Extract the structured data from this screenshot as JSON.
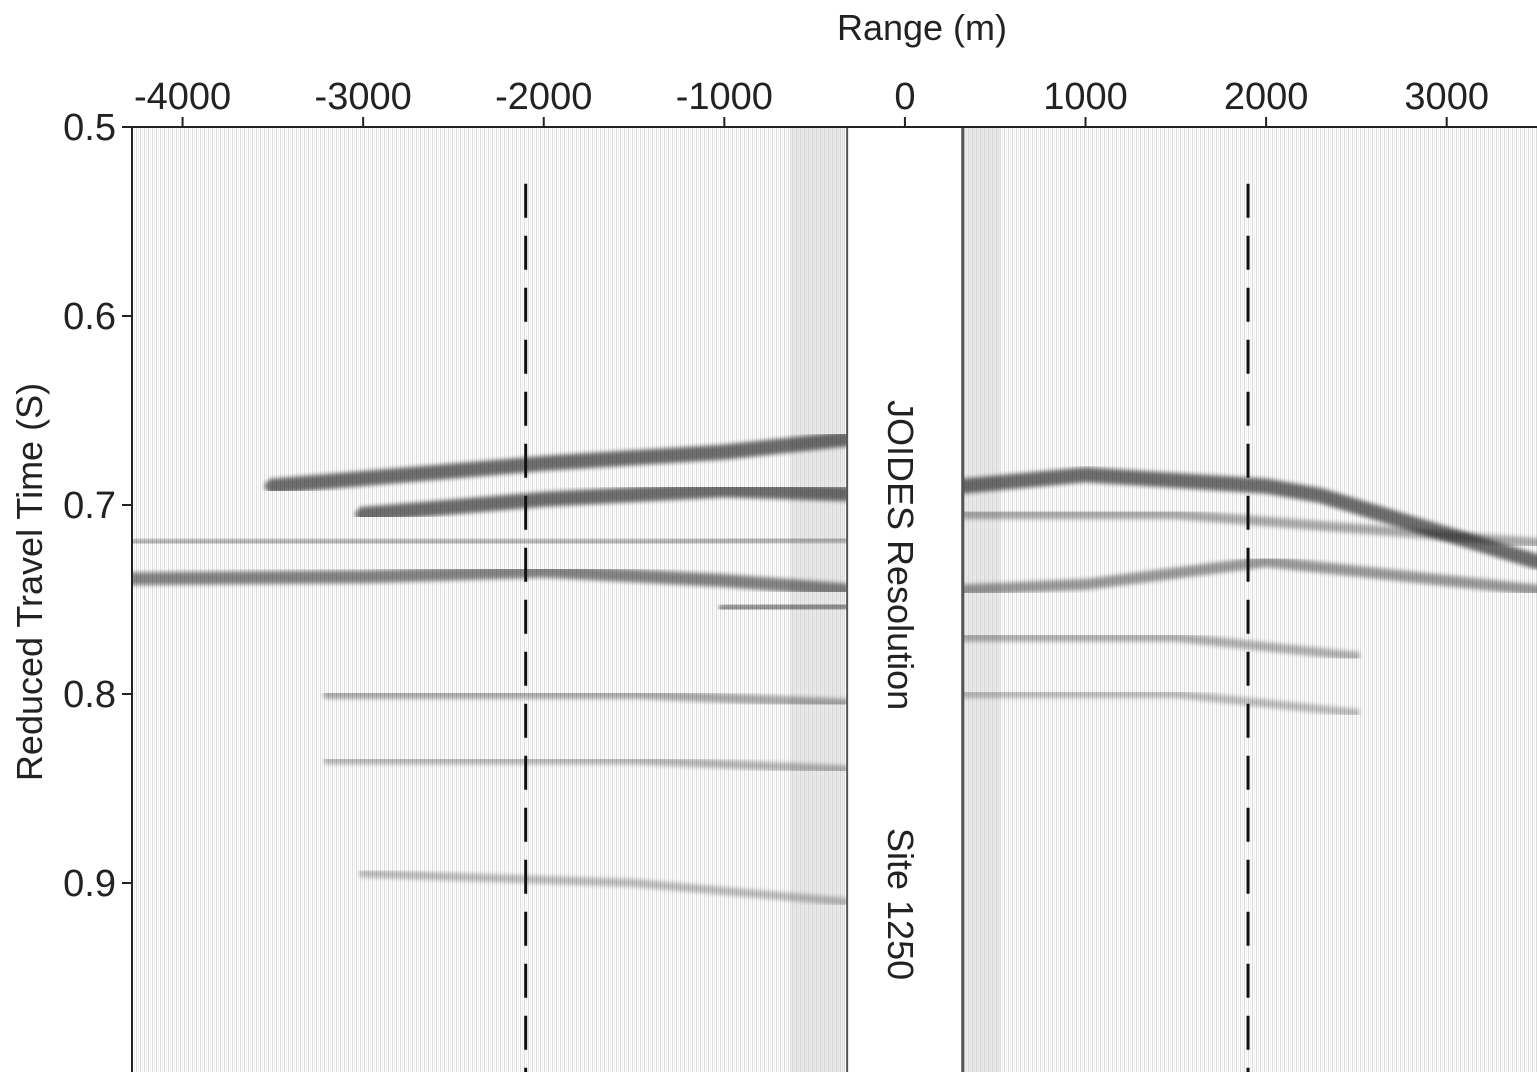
{
  "chart_data": {
    "type": "heatmap",
    "title": "",
    "xlabel": "Range (m)",
    "ylabel": "Reduced Travel Time (S)",
    "xlim": [
      -4280,
      3500
    ],
    "ylim": [
      0.5,
      1.0
    ],
    "y_inverted": true,
    "x_axis_position": "top",
    "x_ticks": [
      {
        "value": -4000,
        "label": "-4000"
      },
      {
        "value": -3000,
        "label": "-3000"
      },
      {
        "value": -2000,
        "label": "-2000"
      },
      {
        "value": -1000,
        "label": "-1000"
      },
      {
        "value": 0,
        "label": "0"
      },
      {
        "value": 1000,
        "label": "1000"
      },
      {
        "value": 2000,
        "label": "2000"
      },
      {
        "value": 3000,
        "label": "3000"
      }
    ],
    "y_ticks": [
      {
        "value": 0.5,
        "label": "0.5"
      },
      {
        "value": 0.6,
        "label": "0.6"
      },
      {
        "value": 0.7,
        "label": "0.7"
      },
      {
        "value": 0.8,
        "label": "0.8"
      },
      {
        "value": 0.9,
        "label": "0.9"
      }
    ],
    "no_data_gap": [
      -320,
      320
    ],
    "dashed_lines_x": [
      -2100,
      1900
    ],
    "reflectors": [
      {
        "side": "left",
        "points": [
          [
            -3500,
            0.69
          ],
          [
            -2000,
            0.678
          ],
          [
            -1000,
            0.672
          ],
          [
            -320,
            0.665
          ]
        ],
        "strength": 0.9
      },
      {
        "side": "left",
        "points": [
          [
            -3000,
            0.705
          ],
          [
            -2000,
            0.697
          ],
          [
            -1000,
            0.692
          ],
          [
            -320,
            0.694
          ]
        ],
        "strength": 0.9
      },
      {
        "side": "left",
        "points": [
          [
            -4280,
            0.72
          ],
          [
            -3000,
            0.72
          ],
          [
            -1500,
            0.72
          ],
          [
            -320,
            0.718
          ]
        ],
        "strength": 0.3
      },
      {
        "side": "left",
        "points": [
          [
            -4280,
            0.739
          ],
          [
            -3000,
            0.738
          ],
          [
            -2000,
            0.735
          ],
          [
            -1000,
            0.74
          ],
          [
            -320,
            0.745
          ]
        ],
        "strength": 0.7
      },
      {
        "side": "left",
        "points": [
          [
            -1000,
            0.755
          ],
          [
            -320,
            0.753
          ]
        ],
        "strength": 0.55
      },
      {
        "side": "left",
        "points": [
          [
            -3200,
            0.8
          ],
          [
            -1500,
            0.8
          ],
          [
            -320,
            0.805
          ]
        ],
        "strength": 0.35
      },
      {
        "side": "left",
        "points": [
          [
            -3200,
            0.835
          ],
          [
            -1500,
            0.835
          ],
          [
            -320,
            0.84
          ]
        ],
        "strength": 0.25
      },
      {
        "side": "left",
        "points": [
          [
            -3000,
            0.895
          ],
          [
            -1500,
            0.9
          ],
          [
            -320,
            0.91
          ]
        ],
        "strength": 0.2
      },
      {
        "side": "right",
        "points": [
          [
            320,
            0.69
          ],
          [
            1000,
            0.684
          ],
          [
            2000,
            0.69
          ],
          [
            2300,
            0.695
          ],
          [
            3500,
            0.73
          ]
        ],
        "strength": 0.9
      },
      {
        "side": "right",
        "points": [
          [
            320,
            0.705
          ],
          [
            1500,
            0.705
          ],
          [
            3500,
            0.72
          ]
        ],
        "strength": 0.35
      },
      {
        "side": "right",
        "points": [
          [
            320,
            0.745
          ],
          [
            1000,
            0.742
          ],
          [
            2000,
            0.73
          ],
          [
            3000,
            0.74
          ],
          [
            3500,
            0.745
          ]
        ],
        "strength": 0.5
      },
      {
        "side": "right",
        "points": [
          [
            320,
            0.77
          ],
          [
            1500,
            0.77
          ],
          [
            2500,
            0.78
          ]
        ],
        "strength": 0.3
      },
      {
        "side": "right",
        "points": [
          [
            320,
            0.8
          ],
          [
            1500,
            0.8
          ],
          [
            2500,
            0.81
          ]
        ],
        "strength": 0.2
      }
    ],
    "annotations": [
      "JOIDES Resolution",
      "Site 1250"
    ]
  }
}
